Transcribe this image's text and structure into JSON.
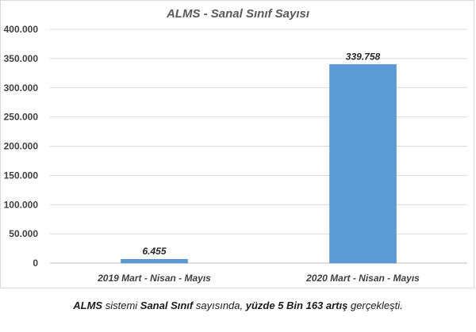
{
  "colors": {
    "bar": "#5b9bd5",
    "grid": "#d9d9d9",
    "text": "#404040"
  },
  "chart_data": {
    "type": "bar",
    "title": "ALMS - Sanal Sınıf Sayısı",
    "categories": [
      "2019 Mart - Nisan - Mayıs",
      "2020 Mart - Nisan - Mayıs"
    ],
    "values": [
      6455,
      339758
    ],
    "data_labels": [
      "6.455",
      "339.758"
    ],
    "ylim": [
      0,
      400000
    ],
    "y_ticks": [
      0,
      50000,
      100000,
      150000,
      200000,
      250000,
      300000,
      350000,
      400000
    ],
    "y_tick_labels": [
      "0",
      "50.000",
      "100.000",
      "150.000",
      "200.000",
      "250.000",
      "300.000",
      "350.000",
      "400.000"
    ],
    "grid": true,
    "legend": "none"
  },
  "caption": {
    "part1": "ALMS",
    "part2": " sistemi ",
    "part3": "Sanal Sınıf",
    "part4": " sayısında, ",
    "part5": "yüzde 5 Bin 163 artış",
    "part6": " gerçekleşti."
  }
}
